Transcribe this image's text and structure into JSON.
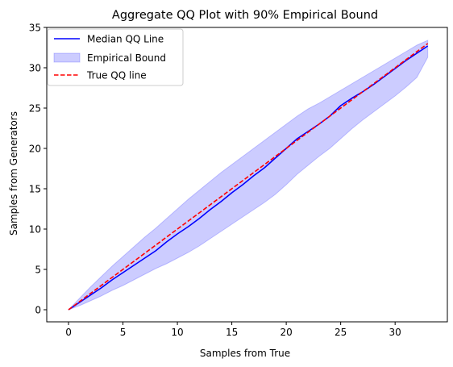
{
  "chart_data": {
    "type": "line",
    "title": "Aggregate QQ Plot with 90% Empirical Bound",
    "xlabel": "Samples from True",
    "ylabel": "Samples from Generators",
    "xlim": [
      -2.0,
      34.8
    ],
    "ylim": [
      -1.5,
      35.0
    ],
    "xticks": [
      0,
      5,
      10,
      15,
      20,
      25,
      30
    ],
    "yticks": [
      0,
      5,
      10,
      15,
      20,
      25,
      30,
      35
    ],
    "grid": false,
    "legend_position": "upper left",
    "series": [
      {
        "name": "Median QQ Line",
        "kind": "line",
        "color": "#0000ff",
        "style": "solid",
        "x": [
          0,
          1,
          2,
          3,
          4,
          5,
          6,
          7,
          8,
          9,
          10,
          11,
          12,
          13,
          14,
          15,
          16,
          17,
          18,
          19,
          20,
          21,
          22,
          23,
          24,
          25,
          26,
          27,
          28,
          29,
          30,
          31,
          32,
          33
        ],
        "y": [
          0,
          0.9,
          1.8,
          2.7,
          3.7,
          4.6,
          5.5,
          6.4,
          7.3,
          8.4,
          9.4,
          10.3,
          11.3,
          12.4,
          13.4,
          14.5,
          15.5,
          16.6,
          17.6,
          18.8,
          20.0,
          21.2,
          22.1,
          23.0,
          24.0,
          25.3,
          26.2,
          27.0,
          27.9,
          28.9,
          29.9,
          30.9,
          31.8,
          32.7
        ]
      },
      {
        "name": "Empirical Bound",
        "kind": "band",
        "color": "#0000ff",
        "opacity": 0.2,
        "x": [
          0,
          1,
          2,
          3,
          4,
          5,
          6,
          7,
          8,
          9,
          10,
          11,
          12,
          13,
          14,
          15,
          16,
          17,
          18,
          19,
          20,
          21,
          22,
          23,
          24,
          25,
          26,
          27,
          28,
          29,
          30,
          31,
          32,
          33
        ],
        "lower": [
          0,
          0.5,
          1.1,
          1.7,
          2.4,
          3.0,
          3.7,
          4.4,
          5.1,
          5.7,
          6.4,
          7.1,
          7.9,
          8.8,
          9.7,
          10.6,
          11.5,
          12.4,
          13.3,
          14.3,
          15.5,
          16.8,
          17.9,
          19.0,
          20.0,
          21.2,
          22.4,
          23.5,
          24.5,
          25.5,
          26.5,
          27.6,
          28.8,
          31.3
        ],
        "upper": [
          0,
          1.4,
          2.8,
          4.1,
          5.4,
          6.6,
          7.8,
          9.0,
          10.1,
          11.3,
          12.5,
          13.7,
          14.8,
          15.9,
          17.0,
          18.0,
          19.0,
          20.0,
          21.0,
          22.0,
          23.0,
          24.0,
          24.9,
          25.6,
          26.4,
          27.2,
          28.0,
          28.8,
          29.6,
          30.4,
          31.2,
          32.0,
          32.8,
          33.4
        ]
      },
      {
        "name": "True QQ line",
        "kind": "line",
        "color": "#ff0000",
        "style": "dashed",
        "x": [
          0,
          33
        ],
        "y": [
          0,
          33
        ]
      }
    ]
  }
}
